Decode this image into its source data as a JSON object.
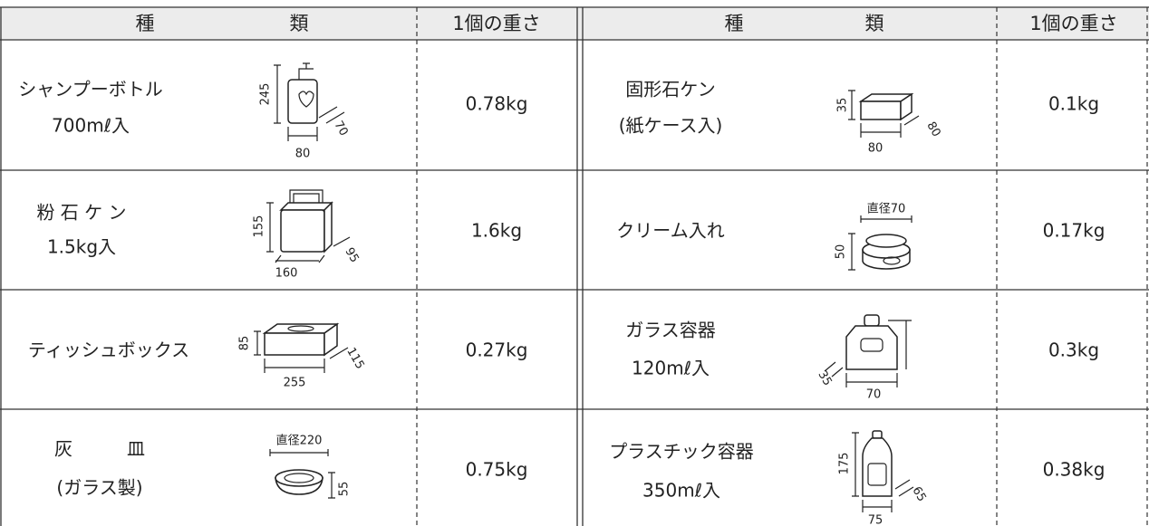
{
  "header": {
    "kind_1": "種",
    "kind_2": "類",
    "weight": "1個の重さ"
  },
  "items": [
    {
      "name": [
        "シャンプーボトル",
        "700mℓ入"
      ],
      "dims": [
        "245",
        "80",
        "70"
      ],
      "weight": "0.78kg"
    },
    {
      "name": [
        "固形石ケン",
        "(紙ケース入)"
      ],
      "dims": [
        "35",
        "80",
        "80"
      ],
      "weight": "0.1kg"
    },
    {
      "name": [
        "粉 石 ケ ン",
        "1.5kg入"
      ],
      "dims": [
        "155",
        "160",
        "95"
      ],
      "weight": "1.6kg"
    },
    {
      "name": [
        "クリーム入れ"
      ],
      "dims": [
        "直径70",
        "50"
      ],
      "weight": "0.17kg"
    },
    {
      "name": [
        "ティッシュボックス"
      ],
      "dims": [
        "85",
        "255",
        "115"
      ],
      "weight": "0.27kg"
    },
    {
      "name": [
        "ガラス容器",
        "120mℓ入"
      ],
      "dims": [
        "35",
        "70"
      ],
      "weight": "0.3kg"
    },
    {
      "name": [
        "灰　　　皿",
        "(ガラス製)"
      ],
      "dims": [
        "直径220",
        "55"
      ],
      "weight": "0.75kg"
    },
    {
      "name": [
        "プラスチック容器",
        "350mℓ入"
      ],
      "dims": [
        "175",
        "75",
        "65"
      ],
      "weight": "0.38kg"
    }
  ]
}
